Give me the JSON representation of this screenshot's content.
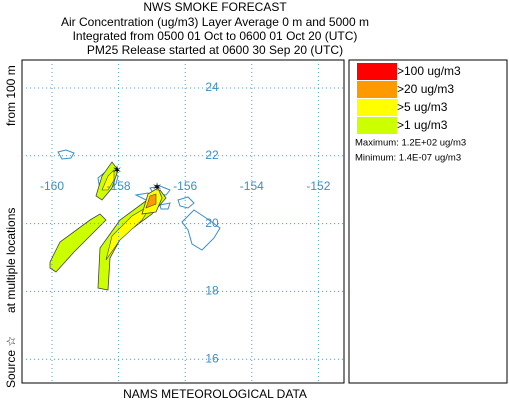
{
  "title": "NWS SMOKE FORECAST",
  "subtitle_lines": [
    "Air Concentration (ug/m3) Layer Average    0 m and  5000 m",
    "Integrated from 0500 01 Oct to 0600 01 Oct 20 (UTC)",
    "PM25 Release started at 0600 30 Sep 20 (UTC)"
  ],
  "map": {
    "longitudes": [
      -160,
      -158,
      -156,
      -154,
      -152
    ],
    "latitudes": [
      24,
      22,
      20,
      18,
      16
    ]
  },
  "legend": [
    {
      "label": ">100 ug/m3",
      "color": "#ff0000"
    },
    {
      "label": ">20 ug/m3",
      "color": "#ff9900"
    },
    {
      "label": ">5 ug/m3",
      "color": "#ffff00"
    },
    {
      "label": ">1 ug/m3",
      "color": "#ccff00"
    }
  ],
  "maximum": "Maximum: 1.2E+02 ug/m3",
  "minimum": "Minimum: 1.4E-07 ug/m3",
  "source_label": [
    "Source ☆",
    "at multiple locations",
    "from  100 m"
  ],
  "footer": "NAMS METEOROLOGICAL DATA"
}
